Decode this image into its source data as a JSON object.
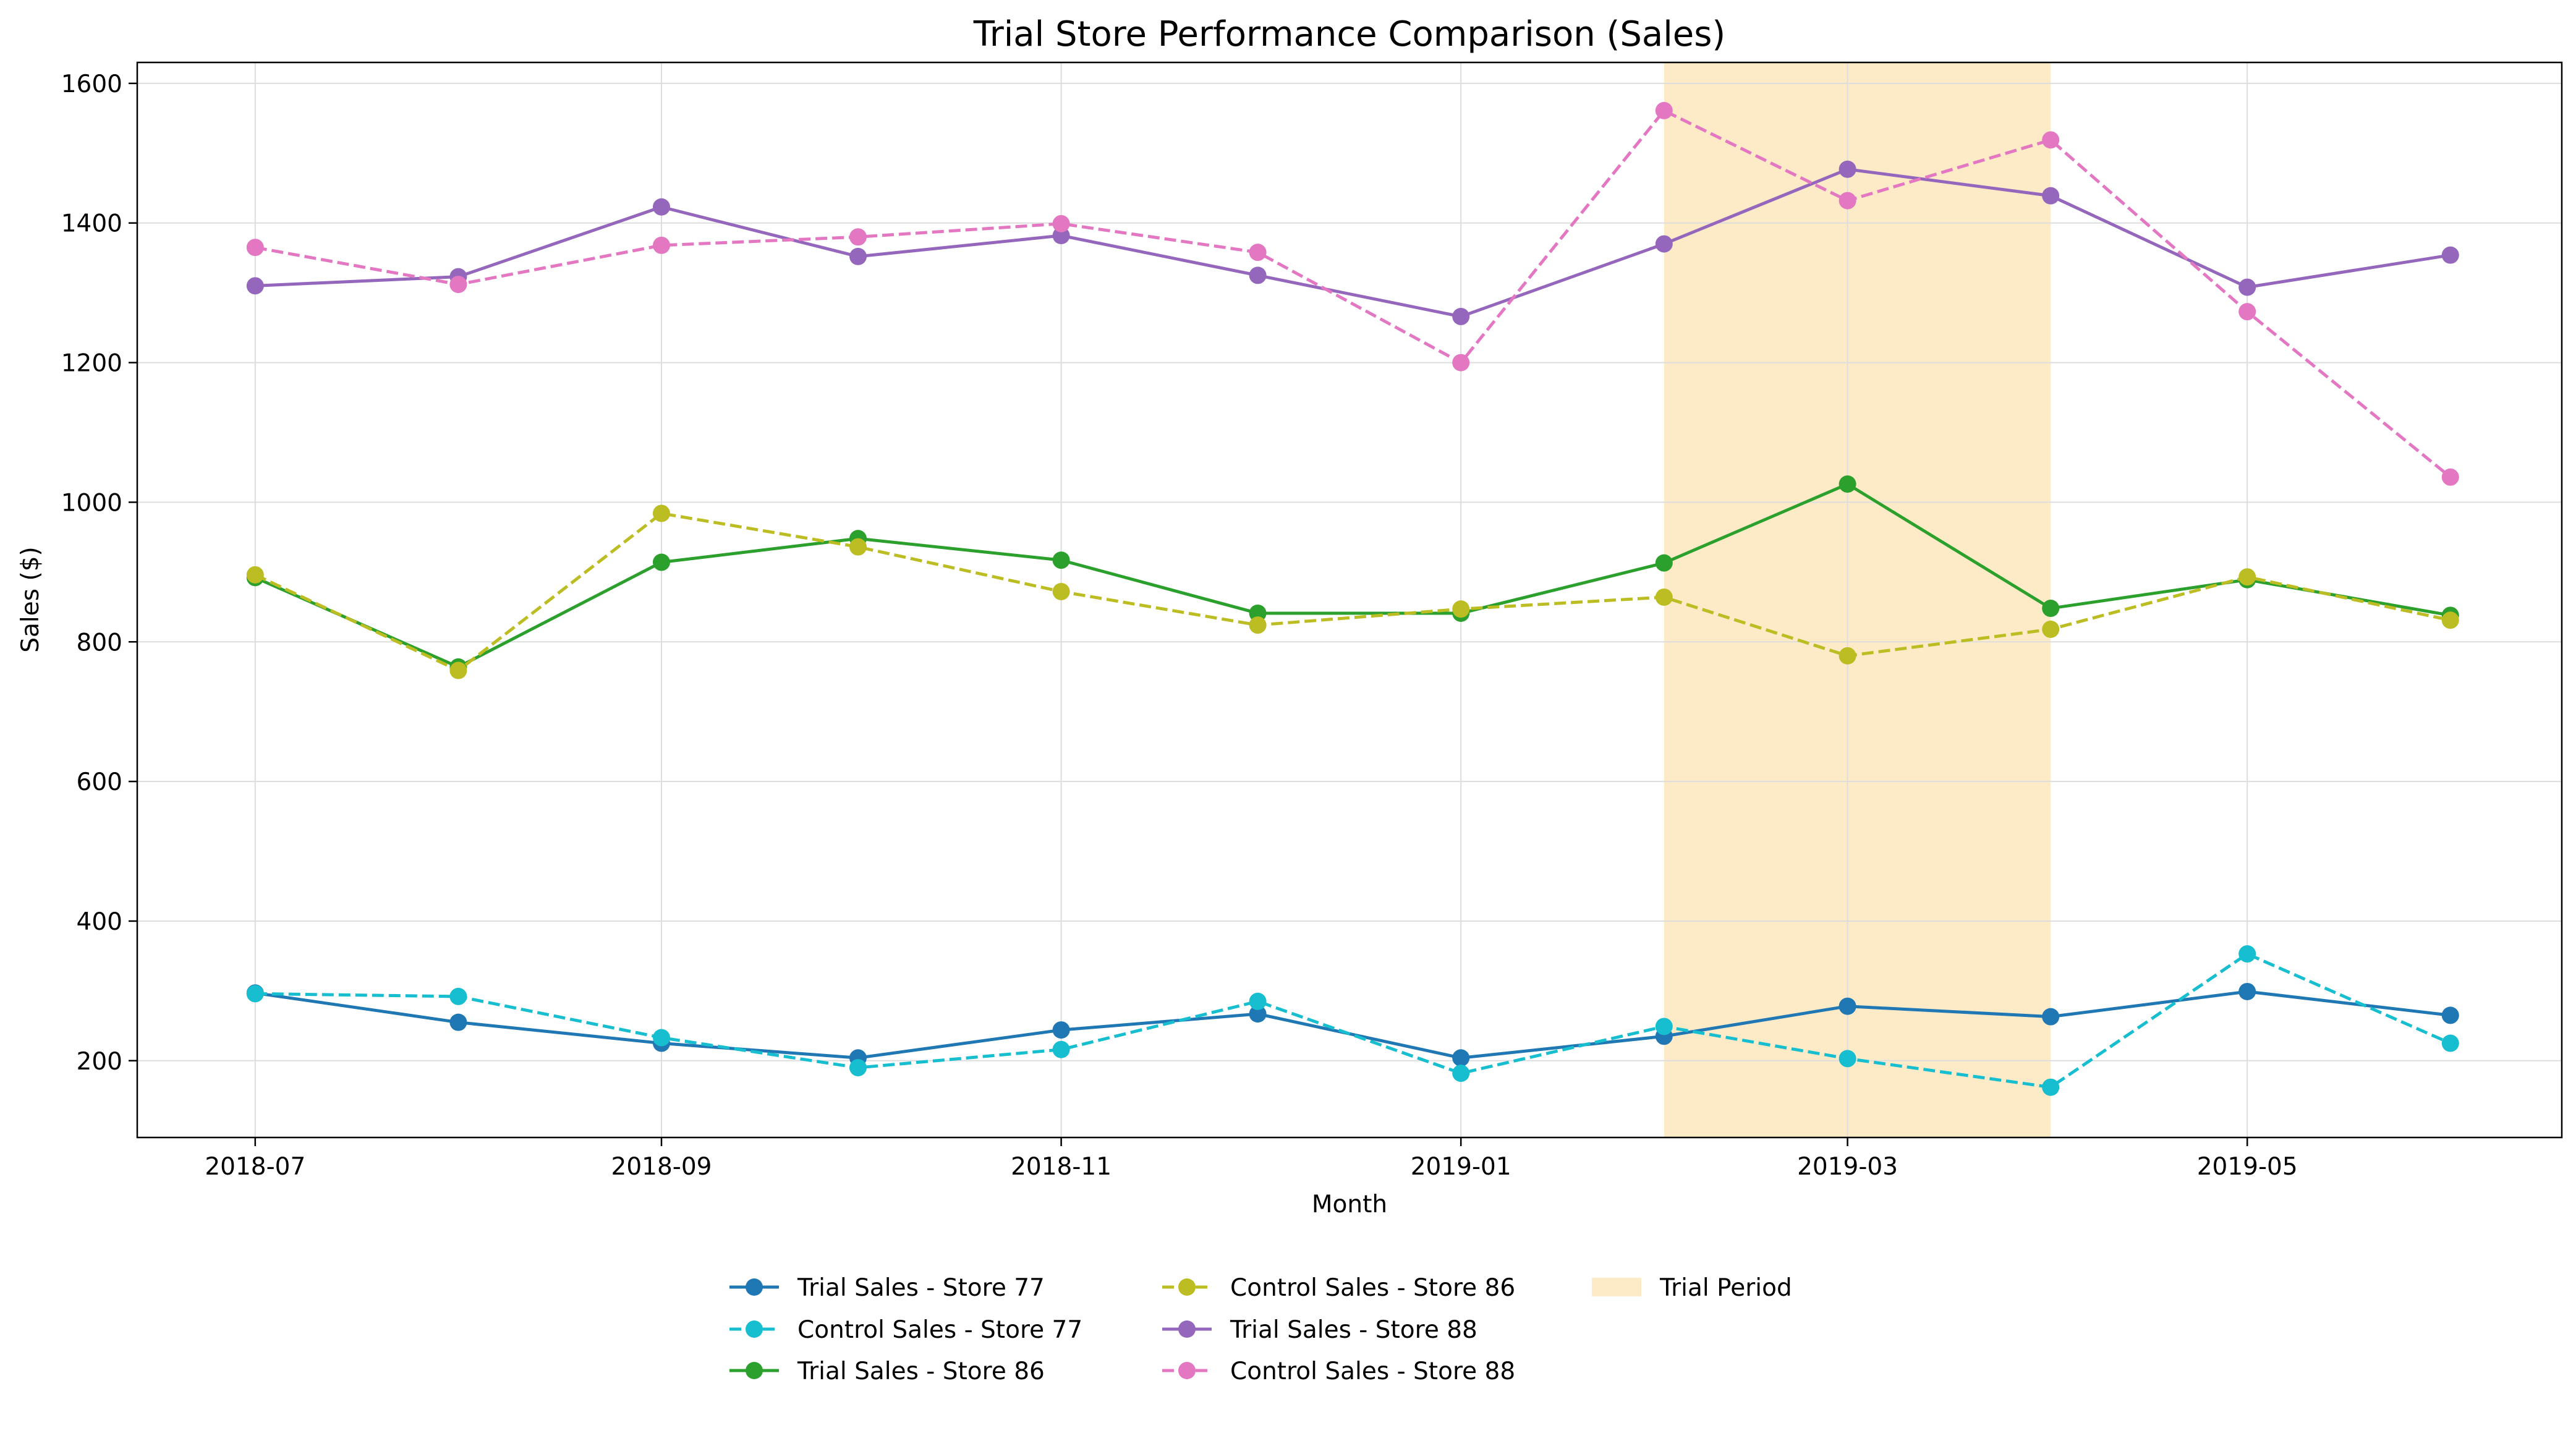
{
  "chart_data": {
    "type": "line",
    "title": "Trial Store Performance Comparison (Sales)",
    "xlabel": "Month",
    "ylabel": "Sales ($)",
    "x": [
      "2018-07",
      "2018-08",
      "2018-09",
      "2018-10",
      "2018-11",
      "2018-12",
      "2019-01",
      "2019-02",
      "2019-03",
      "2019-04",
      "2019-05",
      "2019-06"
    ],
    "x_ticks": [
      "2018-07",
      "2018-09",
      "2018-11",
      "2019-01",
      "2019-03",
      "2019-05"
    ],
    "x_range": [
      "2018-06-13",
      "2019-06-18"
    ],
    "y_ticks": [
      200,
      400,
      600,
      800,
      1000,
      1200,
      1400,
      1600
    ],
    "ylim": [
      90,
      1630
    ],
    "grid": true,
    "legend_position": "bottom-center",
    "shaded_region": {
      "label": "Trial Period",
      "start": "2019-02",
      "end": "2019-04",
      "color": "#fdebc8"
    },
    "series": [
      {
        "name": "Trial Sales - Store 77",
        "color": "#1f77b4",
        "style": "solid",
        "values": [
          297,
          255,
          225,
          204,
          244,
          267,
          204,
          235,
          278,
          263,
          299,
          265
        ]
      },
      {
        "name": "Control Sales - Store 77",
        "color": "#17becf",
        "style": "dashed",
        "values": [
          296,
          292,
          233,
          190,
          216,
          285,
          182,
          249,
          203,
          162,
          353,
          225
        ]
      },
      {
        "name": "Trial Sales - Store 86",
        "color": "#2ca02c",
        "style": "solid",
        "values": [
          892,
          764,
          914,
          948,
          917,
          841,
          841,
          913,
          1026,
          848,
          889,
          838
        ]
      },
      {
        "name": "Control Sales - Store 86",
        "color": "#bcbd22",
        "style": "dashed",
        "values": [
          896,
          759,
          984,
          936,
          872,
          824,
          847,
          864,
          780,
          818,
          893,
          831
        ]
      },
      {
        "name": "Trial Sales - Store 88",
        "color": "#9467bd",
        "style": "solid",
        "values": [
          1310,
          1323,
          1423,
          1352,
          1382,
          1325,
          1266,
          1370,
          1477,
          1439,
          1308,
          1354
        ]
      },
      {
        "name": "Control Sales - Store 88",
        "color": "#e377c2",
        "style": "dashed",
        "values": [
          1365,
          1312,
          1368,
          1380,
          1399,
          1358,
          1200,
          1561,
          1432,
          1519,
          1273,
          1036
        ]
      }
    ]
  }
}
